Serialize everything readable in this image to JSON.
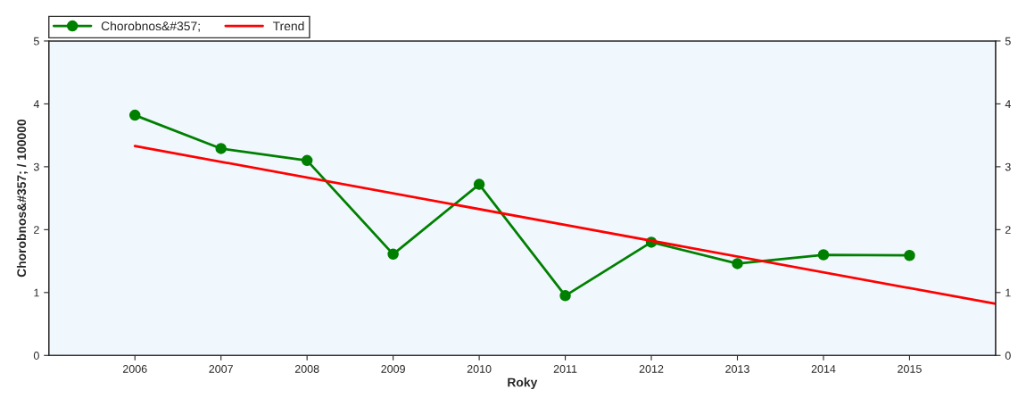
{
  "chart_data": {
    "type": "line",
    "xlabel": "Roky",
    "ylabel": "Chorobnos&#357; / 100000",
    "x": [
      2006,
      2007,
      2008,
      2009,
      2010,
      2011,
      2012,
      2013,
      2014,
      2015
    ],
    "series": [
      {
        "name": "Chorobnos&#357;",
        "color": "#008000",
        "marker": "circle",
        "values": [
          3.82,
          3.29,
          3.1,
          1.61,
          2.72,
          0.95,
          1.8,
          1.46,
          1.6,
          1.59
        ]
      },
      {
        "name": "Trend",
        "color": "#ff0000",
        "marker": "none",
        "x": [
          2006,
          2016
        ],
        "values": [
          3.33,
          0.82
        ]
      }
    ],
    "xlim": [
      2005,
      2016
    ],
    "xticks": [
      2006,
      2007,
      2008,
      2009,
      2010,
      2011,
      2012,
      2013,
      2014,
      2015
    ],
    "ylim": [
      0,
      5
    ],
    "yticks": [
      0,
      1,
      2,
      3,
      4,
      5
    ],
    "y2lim": [
      0,
      5
    ],
    "y2ticks": [
      0,
      1,
      2,
      3,
      4,
      5
    ],
    "grid": false,
    "legend": "top left"
  }
}
